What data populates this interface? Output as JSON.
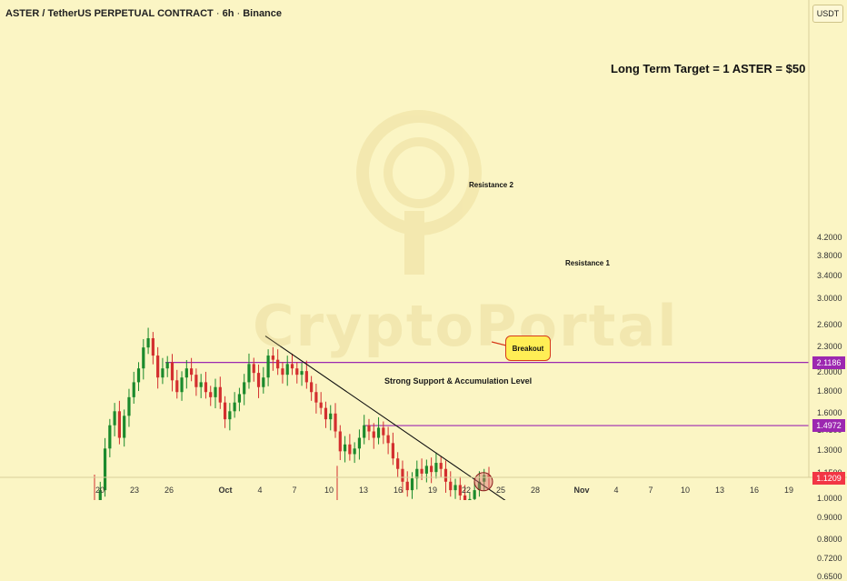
{
  "header": {
    "symbol": "ASTER / TetherUS PERPETUAL CONTRACT",
    "interval": "6h",
    "exchange": "Binance"
  },
  "annotations": {
    "target": "Long Term Target = 1 ASTER = $50",
    "resistance2": "Resistance 2",
    "resistance1": "Resistance 1",
    "support": "Strong Support & Accumulation Level",
    "breakout": "Breakout",
    "watermark": "CryptoPortal"
  },
  "price_axis": {
    "unit": "USDT",
    "ticks": [
      "4.2000",
      "3.8000",
      "3.4000",
      "3.0000",
      "2.6000",
      "2.3000",
      "2.0000",
      "1.8000",
      "1.6000",
      "1.4500",
      "1.3000",
      "1.1500",
      "1.0000",
      "0.9000",
      "0.8000",
      "0.7200",
      "0.6500"
    ]
  },
  "price_badges": [
    {
      "value": "2.1186",
      "color": "#9c27b0"
    },
    {
      "value": "1.4972",
      "color": "#9c27b0"
    },
    {
      "value": "1.1209",
      "color": "#f23645"
    }
  ],
  "time_axis": {
    "ticks": [
      "20",
      "23",
      "26",
      "Oct",
      "4",
      "7",
      "10",
      "13",
      "16",
      "19",
      "22",
      "25",
      "28",
      "Nov",
      "4",
      "7",
      "10",
      "13",
      "16",
      "19"
    ]
  },
  "colors": {
    "background": "#fbf5c4",
    "up": "#1b8a2c",
    "down": "#d32f2f",
    "resistance": "#9c27b0",
    "support_zone": "#a8f09a",
    "price_badge": "#f23645"
  },
  "chart_data": {
    "type": "candlestick",
    "scale": "log",
    "ylim": [
      0.62,
      4.6
    ],
    "levels": {
      "resistance2": 2.1186,
      "resistance1": 1.4972,
      "support_zone": [
        0.88,
        0.95
      ]
    },
    "trendline": [
      {
        "x": "Oct 3",
        "y": 2.45
      },
      {
        "x": "Oct 24",
        "y": 0.95
      }
    ],
    "close": [
      0.78,
      1.05,
      1.32,
      1.5,
      1.62,
      1.4,
      1.58,
      1.75,
      1.9,
      2.05,
      2.3,
      2.42,
      2.2,
      1.95,
      2.05,
      2.12,
      1.92,
      1.8,
      1.95,
      2.05,
      1.98,
      1.85,
      1.9,
      1.8,
      1.75,
      1.85,
      1.7,
      1.55,
      1.62,
      1.7,
      1.78,
      1.9,
      2.1,
      2.0,
      1.85,
      1.95,
      2.2,
      2.15,
      2.05,
      1.98,
      2.1,
      2.05,
      1.98,
      2.02,
      1.9,
      1.8,
      1.7,
      1.65,
      1.55,
      1.6,
      1.45,
      1.3,
      1.35,
      1.28,
      1.32,
      1.4,
      1.5,
      1.45,
      1.4,
      1.48,
      1.42,
      1.36,
      1.25,
      1.18,
      1.1,
      1.05,
      1.12,
      1.18,
      1.15,
      1.2,
      1.16,
      1.22,
      1.18,
      1.1,
      1.05,
      1.08,
      1.02,
      0.98,
      1.0,
      1.05,
      1.1,
      1.14,
      1.13
    ]
  }
}
